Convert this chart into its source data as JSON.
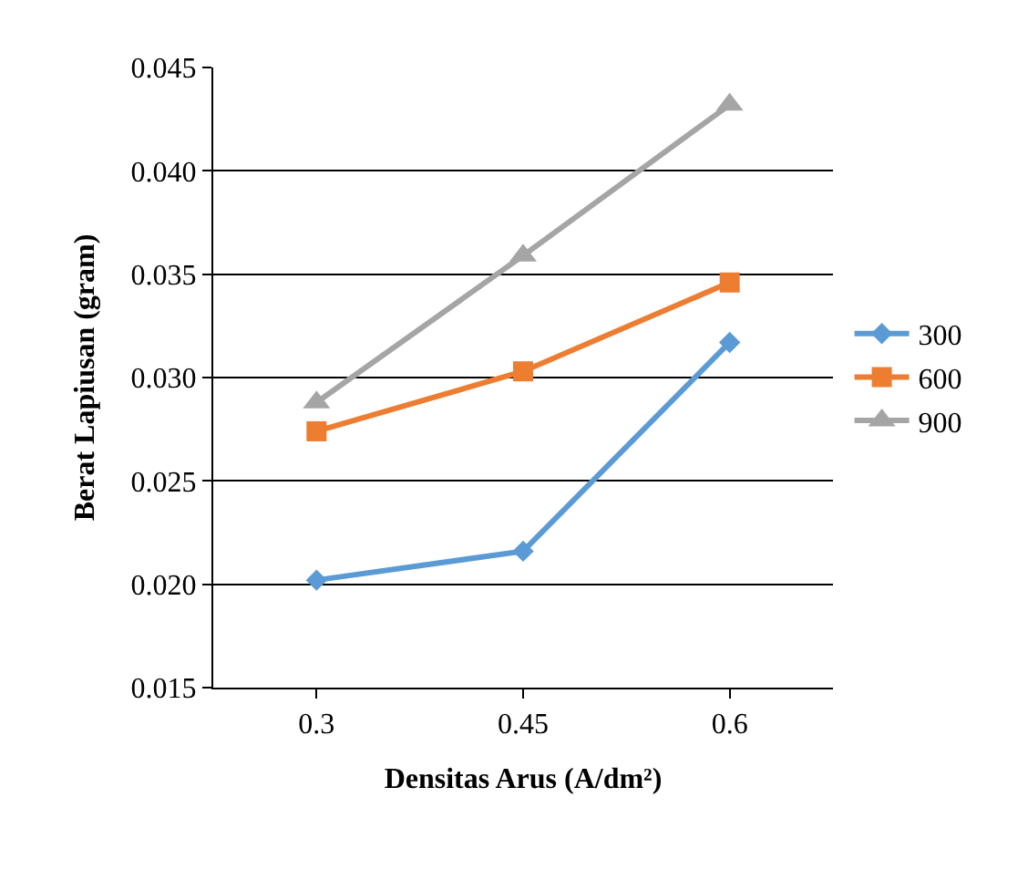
{
  "chart_data": {
    "type": "line",
    "xlabel": "Densitas Arus (A/dm²)",
    "ylabel": "Berat Lapiusan (gram)",
    "categories": [
      "0.3",
      "0.45",
      "0.6"
    ],
    "series": [
      {
        "name": "300",
        "color": "#5b9bd5",
        "marker": "diamond",
        "values": [
          0.0202,
          0.0216,
          0.0317
        ]
      },
      {
        "name": "600",
        "color": "#ed7d31",
        "marker": "square",
        "values": [
          0.0274,
          0.0303,
          0.0346
        ]
      },
      {
        "name": "900",
        "color": "#a5a5a5",
        "marker": "triangle",
        "values": [
          0.0288,
          0.0359,
          0.0432
        ]
      }
    ],
    "ylim": [
      0.015,
      0.045
    ],
    "yticks": [
      0.015,
      {
        "value": 0.02,
        "label": "0.020"
      },
      0.025,
      {
        "value": 0.03,
        "label": "0.030"
      },
      0.035,
      {
        "value": 0.04,
        "label": "0.040"
      },
      0.045
    ],
    "grid": "y",
    "legend": "right",
    "line_style": "solid"
  }
}
